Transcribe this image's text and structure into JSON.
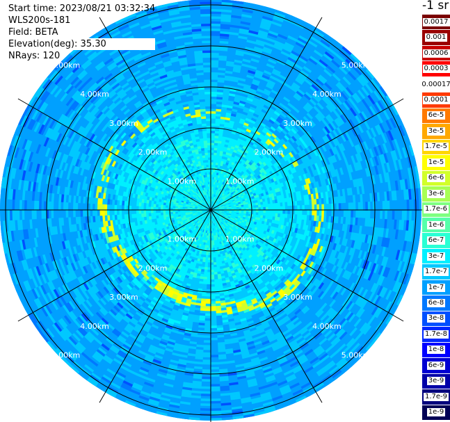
{
  "header": {
    "start_time": "Start time: 2023/08/21 03:32:34",
    "device": "WLS200s-181",
    "field": "Field: BETA",
    "elevation": "Elevation(deg): 35.30",
    "nrays": "NRays: 120"
  },
  "colorbar": {
    "unit": "-1 sr",
    "labels": [
      "0.0017",
      "0.001",
      "0.0006",
      "0.0003",
      "0.00017",
      "0.0001",
      "6e-5",
      "3e-5",
      "1.7e-5",
      "1e-5",
      "6e-6",
      "3e-6",
      "1.7e-6",
      "1e-6",
      "6e-7",
      "3e-7",
      "1.7e-7",
      "1e-7",
      "6e-8",
      "3e-8",
      "1.7e-8",
      "1e-8",
      "6e-9",
      "3e-9",
      "1.7e-9",
      "1e-9"
    ],
    "colors": [
      "#7a0000",
      "#9a0000",
      "#c80000",
      "#ff0000",
      "#ffffff",
      "#ff3a00",
      "#ff7a00",
      "#ffa800",
      "#ffd600",
      "#ffff00",
      "#d2ff2a",
      "#a8ff55",
      "#7dff80",
      "#55ffaa",
      "#2affd4",
      "#00f0ff",
      "#00c8ff",
      "#00a0ff",
      "#0078ff",
      "#0050ff",
      "#0028ff",
      "#0000ff",
      "#0000d2",
      "#0000a8",
      "#00007d",
      "#000055"
    ]
  },
  "range_rings": {
    "labels": [
      "1.00km",
      "2.00km",
      "3.00km",
      "4.00km",
      "5.00km"
    ]
  }
}
